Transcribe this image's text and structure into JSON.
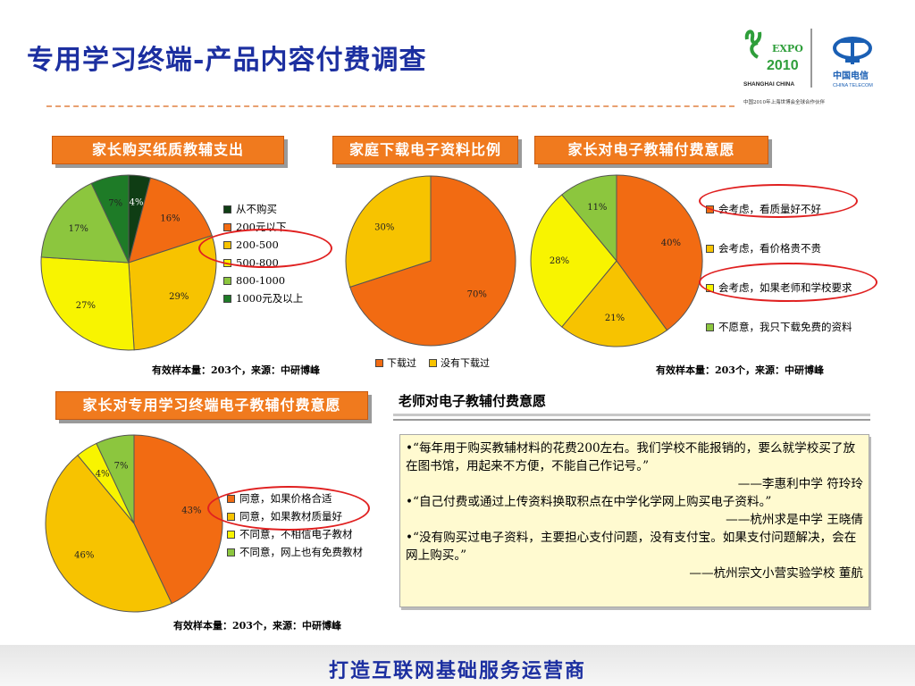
{
  "page": {
    "title": "专用学习终端-产品内容付费调查",
    "slogan": "打造互联网基础服务运营商"
  },
  "logos": {
    "expo_text": "EXPO",
    "expo_year": "2010",
    "expo_city": "SHANGHAI CHINA",
    "telecom_cn": "中国电信",
    "telecom_en": "CHINA TELECOM",
    "partner_line": "中国2010年上海世博会全球合作伙伴"
  },
  "sections": {
    "parent_paper": "家长购买纸质教辅支出",
    "family_download": "家庭下载电子资料比例",
    "parent_willing": "家长对电子教辅付费意愿",
    "terminal_willing": "家长对专用学习终端电子教辅付费意愿"
  },
  "notes": {
    "sample_1": "有效样本量：203个，来源：中研博峰",
    "sample_2": "有效样本量：203个，来源：中研博峰",
    "sample_3": "有效样本量：203个，来源：中研博峰"
  },
  "teacher": {
    "title": "老师对电子教辅付费意愿",
    "quotes": [
      {
        "text": "•“每年用于购买教辅材料的花费200左右。我们学校不能报销的，要么就学校买了放在图书馆，用起来不方便，不能自己作记号。”",
        "source": "——李惠利中学 符玲玲"
      },
      {
        "text": "•“自己付费或通过上传资料换取积点在中学化学网上购买电子资料。”",
        "source": "——杭州求是中学 王晓倩"
      },
      {
        "text": "•“没有购买过电子资料，主要担心支付问题，没有支付宝。如果支付问题解决，会在网上购买。”",
        "source": "——杭州宗文小营实验学校 董航"
      }
    ]
  },
  "chart_data": [
    {
      "type": "pie",
      "title": "家长购买纸质教辅支出",
      "categories": [
        "从不购买",
        "200元以下",
        "200-500",
        "500-800",
        "800-1000",
        "1000元及以上"
      ],
      "values": [
        4,
        16,
        29,
        27,
        17,
        7
      ],
      "labels": [
        "4%",
        "16%",
        "29%",
        "27%",
        "17%",
        "7%"
      ],
      "colors": [
        "#0f3d14",
        "#f26b12",
        "#f7c300",
        "#f8f400",
        "#8cc63e",
        "#1e7b27"
      ],
      "legend_position": "right"
    },
    {
      "type": "pie",
      "title": "家庭下载电子资料比例",
      "categories": [
        "下载过",
        "没有下载过"
      ],
      "values": [
        70,
        30
      ],
      "labels": [
        "70%",
        "30%"
      ],
      "colors": [
        "#f26b12",
        "#f7c300"
      ],
      "legend_position": "bottom"
    },
    {
      "type": "pie",
      "title": "家长对电子教辅付费意愿",
      "categories": [
        "会考虑，看质量好不好",
        "会考虑，看价格贵不贵",
        "会考虑，如果老师和学校要求",
        "不愿意，我只下载免费的资料"
      ],
      "values": [
        40,
        21,
        28,
        11
      ],
      "labels": [
        "40%",
        "21%",
        "28%",
        "11%"
      ],
      "colors": [
        "#f26b12",
        "#f7c300",
        "#f8f400",
        "#8cc63e"
      ],
      "legend_position": "right"
    },
    {
      "type": "pie",
      "title": "家长对专用学习终端电子教辅付费意愿",
      "categories": [
        "同意，如果价格合适",
        "同意，如果教材质量好",
        "不同意，不相信电子教材",
        "不同意，网上也有免费教材"
      ],
      "values": [
        43,
        46,
        4,
        7
      ],
      "labels": [
        "43%",
        "46%",
        "4%",
        "7%"
      ],
      "colors": [
        "#f26b12",
        "#f7c300",
        "#f8f400",
        "#8cc63e"
      ],
      "legend_position": "right"
    }
  ]
}
